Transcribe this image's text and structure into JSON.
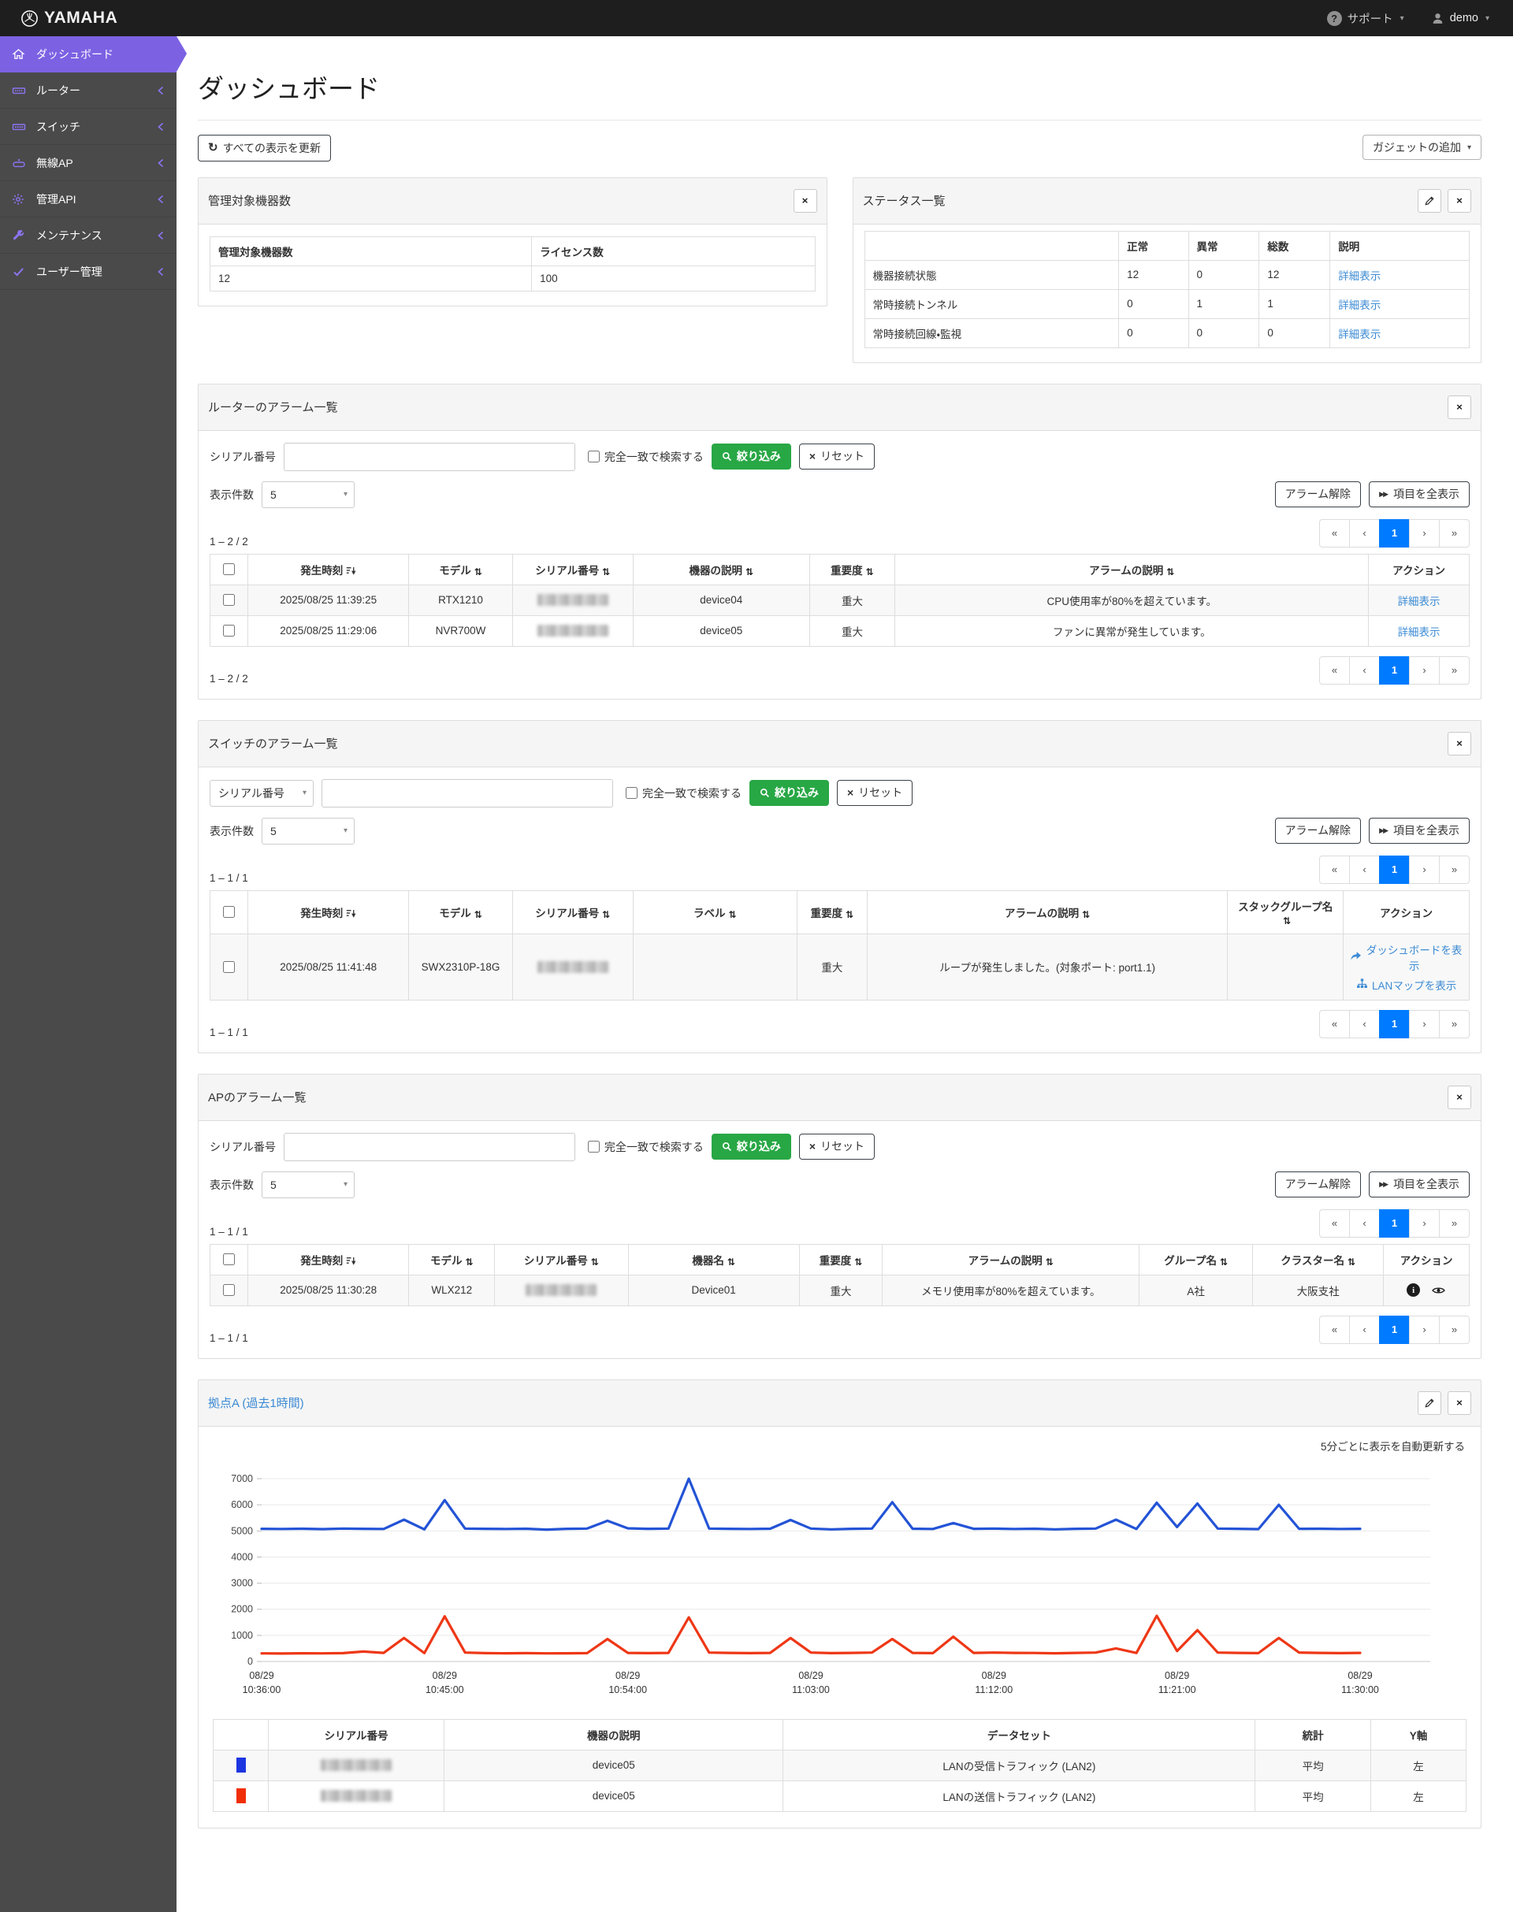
{
  "topbar": {
    "brand": "YAMAHA",
    "support_label": "サポート",
    "user_label": "demo"
  },
  "sidebar": {
    "items": [
      {
        "label": "ダッシュボード",
        "icon": "home-icon",
        "active": true
      },
      {
        "label": "ルーター",
        "icon": "router-icon"
      },
      {
        "label": "スイッチ",
        "icon": "switch-icon"
      },
      {
        "label": "無線AP",
        "icon": "ap-icon"
      },
      {
        "label": "管理API",
        "icon": "gear-icon"
      },
      {
        "label": "メンテナンス",
        "icon": "wrench-icon"
      },
      {
        "label": "ユーザー管理",
        "icon": "user-check-icon"
      }
    ]
  },
  "page": {
    "title": "ダッシュボード",
    "refresh_all": "すべての表示を更新",
    "add_gadget": "ガジェットの追加"
  },
  "common": {
    "serial_label": "シリアル番号",
    "exact_match": "完全一致で検索する",
    "filter_btn": "絞り込み",
    "reset_btn": "リセット",
    "page_size_label": "表示件数",
    "page_size_value": "5",
    "alarm_clear_btn": "アラーム解除",
    "show_all_btn": "項目を全表示",
    "pager": [
      "«",
      "‹",
      "1",
      "›",
      "»"
    ]
  },
  "widgets": {
    "devices": {
      "title": "管理対象機器数",
      "headers": [
        "管理対象機器数",
        "ライセンス数"
      ],
      "rows": [
        [
          {
            "t": "text",
            "v": "12"
          },
          {
            "t": "text",
            "v": "100"
          }
        ]
      ]
    },
    "status": {
      "title": "ステータス一覧",
      "headers": [
        "",
        "正常",
        "異常",
        "総数",
        "説明"
      ],
      "col_w": [
        "42%",
        "11.5%",
        "11.7%",
        "11.7%",
        "23%"
      ],
      "rows": [
        [
          {
            "t": "text",
            "v": "機器接続状態"
          },
          {
            "t": "text",
            "v": "12"
          },
          {
            "t": "text",
            "v": "0"
          },
          {
            "t": "text",
            "v": "12"
          },
          {
            "t": "link",
            "v": "詳細表示"
          }
        ],
        [
          {
            "t": "text",
            "v": "常時接続トンネル"
          },
          {
            "t": "text",
            "v": "0"
          },
          {
            "t": "text",
            "v": "1"
          },
          {
            "t": "text",
            "v": "1"
          },
          {
            "t": "link",
            "v": "詳細表示"
          }
        ],
        [
          {
            "t": "text",
            "v": "常時接続回線・監視"
          },
          {
            "t": "text",
            "v": "0"
          },
          {
            "t": "text",
            "v": "0"
          },
          {
            "t": "text",
            "v": "0"
          },
          {
            "t": "link",
            "v": "詳細表示"
          }
        ]
      ]
    },
    "router": {
      "title": "ルーターのアラーム一覧",
      "count": "1 – 2 / 2",
      "columns": [
        {
          "l": "",
          "t": "chk"
        },
        {
          "l": "発生時刻",
          "s": "desc"
        },
        {
          "l": "モデル",
          "s": "both"
        },
        {
          "l": "シリアル番号",
          "s": "both"
        },
        {
          "l": "機器の説明",
          "s": "both"
        },
        {
          "l": "重要度",
          "s": "both"
        },
        {
          "l": "アラームの説明",
          "s": "both"
        },
        {
          "l": "アクション"
        }
      ],
      "col_w": [
        "3%",
        "12.8%",
        "8.2%",
        "9.6%",
        "14%",
        "6.8%",
        "37.6%",
        "8%"
      ],
      "rows": [
        [
          {
            "t": "chk"
          },
          {
            "t": "text",
            "v": "2025/08/25 11:39:25"
          },
          {
            "t": "text",
            "v": "RTX1210"
          },
          {
            "t": "blur"
          },
          {
            "t": "text",
            "v": "device04"
          },
          {
            "t": "text",
            "v": "重大"
          },
          {
            "t": "text",
            "v": "CPU使用率が80%を超えています。"
          },
          {
            "t": "link",
            "v": "詳細表示"
          }
        ],
        [
          {
            "t": "chk"
          },
          {
            "t": "text",
            "v": "2025/08/25 11:29:06"
          },
          {
            "t": "text",
            "v": "NVR700W"
          },
          {
            "t": "blur"
          },
          {
            "t": "text",
            "v": "device05"
          },
          {
            "t": "text",
            "v": "重大"
          },
          {
            "t": "text",
            "v": "ファンに異常が発生しています。"
          },
          {
            "t": "link",
            "v": "詳細表示"
          }
        ]
      ]
    },
    "switch": {
      "title": "スイッチのアラーム一覧",
      "count": "1 – 1 / 1",
      "search_field_option": "シリアル番号",
      "columns": [
        {
          "l": "",
          "t": "chk"
        },
        {
          "l": "発生時刻",
          "s": "desc"
        },
        {
          "l": "モデル",
          "s": "both"
        },
        {
          "l": "シリアル番号",
          "s": "both"
        },
        {
          "l": "ラベル",
          "s": "both"
        },
        {
          "l": "重要度",
          "s": "both"
        },
        {
          "l": "アラームの説明",
          "s": "both"
        },
        {
          "l": "スタックグループ名",
          "s": "both"
        },
        {
          "l": "アクション"
        }
      ],
      "col_w": [
        "3%",
        "12.8%",
        "8.2%",
        "9.6%",
        "13%",
        "5.6%",
        "28.6%",
        "9.2%",
        "10%"
      ],
      "rows": [
        [
          {
            "t": "chk"
          },
          {
            "t": "text",
            "v": "2025/08/25 11:41:48"
          },
          {
            "t": "text",
            "v": "SWX2310P-18G"
          },
          {
            "t": "blur"
          },
          {
            "t": "text",
            "v": ""
          },
          {
            "t": "text",
            "v": "重大"
          },
          {
            "t": "text",
            "v": "ループが発生しました。(対象ポート: port1.1)"
          },
          {
            "t": "text",
            "v": ""
          },
          {
            "t": "links",
            "v": [
              {
                "icon": "share-icon",
                "label": "ダッシュボードを表示"
              },
              {
                "icon": "sitemap-icon",
                "label": "LANマップを表示"
              }
            ]
          }
        ]
      ]
    },
    "ap": {
      "title": "APのアラーム一覧",
      "count": "1 – 1 / 1",
      "columns": [
        {
          "l": "",
          "t": "chk"
        },
        {
          "l": "発生時刻",
          "s": "desc"
        },
        {
          "l": "モデル",
          "s": "both"
        },
        {
          "l": "シリアル番号",
          "s": "both"
        },
        {
          "l": "機器名",
          "s": "both"
        },
        {
          "l": "重要度",
          "s": "both"
        },
        {
          "l": "アラームの説明",
          "s": "both"
        },
        {
          "l": "グループ名",
          "s": "both"
        },
        {
          "l": "クラスター名",
          "s": "both"
        },
        {
          "l": "アクション"
        }
      ],
      "col_w": [
        "3%",
        "12.8%",
        "6.8%",
        "10.6%",
        "13.6%",
        "6.6%",
        "20.4%",
        "9%",
        "10.4%",
        "6.8%"
      ],
      "rows": [
        [
          {
            "t": "chk"
          },
          {
            "t": "text",
            "v": "2025/08/25 11:30:28"
          },
          {
            "t": "text",
            "v": "WLX212"
          },
          {
            "t": "blur"
          },
          {
            "t": "text",
            "v": "Device01"
          },
          {
            "t": "text",
            "v": "重大"
          },
          {
            "t": "text",
            "v": "メモリ使用率が80%を超えています。"
          },
          {
            "t": "text",
            "v": "A社"
          },
          {
            "t": "text",
            "v": "大阪支社"
          },
          {
            "t": "icons",
            "v": [
              "info-icon",
              "eye-icon"
            ]
          }
        ]
      ]
    },
    "site": {
      "title": "拠点A (過去1時間)",
      "auto_note": "5分ごとに表示を自動更新する",
      "legend": {
        "headers": [
          "",
          "シリアル番号",
          "機器の説明",
          "データセット",
          "統計",
          "Y軸"
        ],
        "col_w": [
          "4.4%",
          "14%",
          "27%",
          "37.6%",
          "9.2%",
          "7.6%"
        ],
        "rows": [
          [
            {
              "t": "swatch",
              "v": "#1d35e0"
            },
            {
              "t": "blur"
            },
            {
              "t": "text",
              "v": "device05"
            },
            {
              "t": "text",
              "v": "LANの受信トラフィック (LAN2)"
            },
            {
              "t": "text",
              "v": "平均"
            },
            {
              "t": "text",
              "v": "左"
            }
          ],
          [
            {
              "t": "swatch",
              "v": "#f02e07"
            },
            {
              "t": "blur"
            },
            {
              "t": "text",
              "v": "device05"
            },
            {
              "t": "text",
              "v": "LANの送信トラフィック (LAN2)"
            },
            {
              "t": "text",
              "v": "平均"
            },
            {
              "t": "text",
              "v": "左"
            }
          ]
        ]
      }
    }
  },
  "chart_data": {
    "type": "line",
    "title": "拠点A (過去1時間)",
    "ylim": [
      0,
      7000
    ],
    "y_ticks": [
      0,
      1000,
      2000,
      3000,
      4000,
      5000,
      6000,
      7000
    ],
    "grid": "horizontal",
    "legend_position": "table-below",
    "x_tick_index": [
      0,
      9,
      18,
      27,
      36,
      45,
      54
    ],
    "x_tick_labels": [
      [
        "08/29",
        "10:36:00"
      ],
      [
        "08/29",
        "10:45:00"
      ],
      [
        "08/29",
        "10:54:00"
      ],
      [
        "08/29",
        "11:03:00"
      ],
      [
        "08/29",
        "11:12:00"
      ],
      [
        "08/29",
        "11:21:00"
      ],
      [
        "08/29",
        "11:30:00"
      ]
    ],
    "series": [
      {
        "name": "LANの受信トラフィック (LAN2)",
        "color": "#2353d6",
        "values": [
          5080,
          5075,
          5085,
          5070,
          5090,
          5080,
          5075,
          5430,
          5060,
          6180,
          5090,
          5080,
          5075,
          5085,
          5050,
          5080,
          5090,
          5390,
          5100,
          5080,
          5090,
          7000,
          5090,
          5080,
          5075,
          5085,
          5420,
          5090,
          5060,
          5080,
          5090,
          6100,
          5085,
          5075,
          5300,
          5080,
          5090,
          5075,
          5085,
          5060,
          5080,
          5090,
          5430,
          5075,
          6080,
          5150,
          6050,
          5090,
          5080,
          5070,
          6000,
          5080,
          5085,
          5075,
          5080
        ]
      },
      {
        "name": "LANの送信トラフィック (LAN2)",
        "color": "#ee3716",
        "values": [
          310,
          305,
          315,
          310,
          320,
          380,
          330,
          900,
          320,
          1730,
          340,
          320,
          315,
          320,
          310,
          315,
          320,
          860,
          330,
          320,
          330,
          1690,
          340,
          330,
          320,
          330,
          900,
          340,
          320,
          330,
          340,
          860,
          330,
          320,
          950,
          330,
          340,
          330,
          325,
          315,
          330,
          340,
          500,
          325,
          1750,
          400,
          1200,
          340,
          330,
          320,
          900,
          340,
          330,
          320,
          330
        ]
      }
    ]
  }
}
